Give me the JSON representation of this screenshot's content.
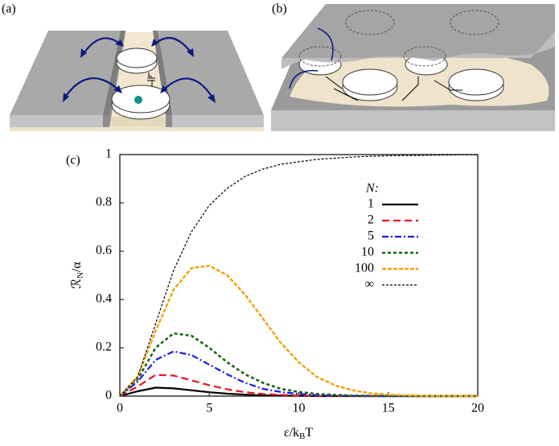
{
  "panel_labels": [
    "(a)",
    "(b)",
    "(c)"
  ],
  "chart_data": {
    "type": "line",
    "xlabel": {
      "main": "ε/k",
      "sub": "B",
      "rest": "T"
    },
    "ylabel": {
      "main": "ℛ",
      "sub": "N",
      "rest": "/α"
    },
    "legend_title": "N:",
    "legend": "upper right",
    "x": [
      0,
      1,
      2,
      3,
      4,
      5,
      6,
      7,
      8,
      9,
      10,
      11,
      12,
      13,
      14,
      15,
      16,
      17,
      18,
      19,
      20
    ],
    "series": [
      {
        "name": "1",
        "color": "#000000",
        "dash": "none",
        "width": 2.2,
        "values": [
          0,
          0.02,
          0.035,
          0.032,
          0.024,
          0.016,
          0.01,
          0.006,
          0.003,
          0.002,
          0.001,
          0,
          0,
          0,
          0,
          0,
          0,
          0,
          0,
          0,
          0
        ]
      },
      {
        "name": "2",
        "color": "#e8141c",
        "dash": "9 5",
        "width": 2.2,
        "values": [
          0,
          0.04,
          0.088,
          0.085,
          0.065,
          0.045,
          0.028,
          0.016,
          0.009,
          0.005,
          0.002,
          0.001,
          0,
          0,
          0,
          0,
          0,
          0,
          0,
          0,
          0
        ]
      },
      {
        "name": "5",
        "color": "#1a1ae6",
        "dash": "8 3 2 3",
        "width": 2.2,
        "values": [
          0,
          0.06,
          0.15,
          0.185,
          0.17,
          0.13,
          0.09,
          0.055,
          0.03,
          0.017,
          0.009,
          0.004,
          0.002,
          0.001,
          0,
          0,
          0,
          0,
          0,
          0,
          0
        ]
      },
      {
        "name": "10",
        "color": "#1a6614",
        "dash": "4 3",
        "width": 2.6,
        "values": [
          0,
          0.07,
          0.2,
          0.26,
          0.25,
          0.2,
          0.14,
          0.09,
          0.055,
          0.03,
          0.017,
          0.009,
          0.005,
          0.002,
          0.001,
          0,
          0,
          0,
          0,
          0,
          0
        ]
      },
      {
        "name": "100",
        "color": "#f0a30a",
        "dash": "5 2",
        "width": 2.4,
        "values": [
          0,
          0.08,
          0.27,
          0.44,
          0.53,
          0.54,
          0.5,
          0.42,
          0.32,
          0.22,
          0.14,
          0.08,
          0.045,
          0.024,
          0.012,
          0.006,
          0.003,
          0.001,
          0.0005,
          0,
          0
        ]
      },
      {
        "name": "∞",
        "color": "#000000",
        "dash": "3 2",
        "width": 1.2,
        "values": [
          0,
          0.08,
          0.3,
          0.52,
          0.68,
          0.79,
          0.86,
          0.91,
          0.94,
          0.96,
          0.97,
          0.98,
          0.985,
          0.99,
          0.993,
          0.995,
          0.996,
          0.997,
          0.998,
          0.999,
          0.999
        ]
      }
    ],
    "xlim": [
      0,
      20
    ],
    "ylim": [
      0,
      1
    ],
    "xticks": [
      0,
      5,
      10,
      15,
      20
    ],
    "yticks": [
      0,
      0.2,
      0.4,
      0.6,
      0.8,
      1
    ]
  }
}
